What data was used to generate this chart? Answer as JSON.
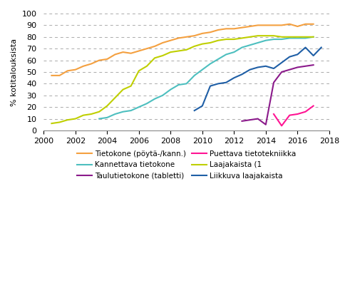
{
  "ylabel": "% kotitalouksista",
  "xlim": [
    2000,
    2018
  ],
  "ylim": [
    0,
    100
  ],
  "yticks": [
    0,
    10,
    20,
    30,
    40,
    50,
    60,
    70,
    80,
    90,
    100
  ],
  "xticks": [
    2000,
    2002,
    2004,
    2006,
    2008,
    2010,
    2012,
    2014,
    2016,
    2018
  ],
  "legend_order": [
    "Tietokone (pöytä-/kann.)",
    "Kannettava tietokone",
    "Taulutietokone (tabletti)",
    "Puettava tietotekniikka",
    "Laajakaista (1",
    "Liikkuva laajakaista"
  ],
  "series": {
    "Tietokone (pöytä-/kann.)": {
      "color": "#F4A040",
      "data": [
        [
          2000.5,
          47
        ],
        [
          2001.0,
          47
        ],
        [
          2001.5,
          51
        ],
        [
          2002.0,
          52
        ],
        [
          2002.5,
          55
        ],
        [
          2003.0,
          57
        ],
        [
          2003.5,
          60
        ],
        [
          2004.0,
          61
        ],
        [
          2004.5,
          65
        ],
        [
          2005.0,
          67
        ],
        [
          2005.5,
          66
        ],
        [
          2006.0,
          68
        ],
        [
          2006.5,
          70
        ],
        [
          2007.0,
          72
        ],
        [
          2007.5,
          75
        ],
        [
          2008.0,
          77
        ],
        [
          2008.5,
          79
        ],
        [
          2009.0,
          80
        ],
        [
          2009.5,
          81
        ],
        [
          2010.0,
          83
        ],
        [
          2010.5,
          84
        ],
        [
          2011.0,
          86
        ],
        [
          2011.5,
          87
        ],
        [
          2012.0,
          87
        ],
        [
          2012.5,
          88
        ],
        [
          2013.0,
          89
        ],
        [
          2013.5,
          90
        ],
        [
          2014.0,
          90
        ],
        [
          2014.5,
          90
        ],
        [
          2015.0,
          90
        ],
        [
          2015.5,
          91
        ],
        [
          2016.0,
          89
        ],
        [
          2016.5,
          91
        ],
        [
          2017.0,
          91
        ]
      ]
    },
    "Kannettava tietokone": {
      "color": "#4DBFBF",
      "data": [
        [
          2003.5,
          10
        ],
        [
          2004.0,
          11
        ],
        [
          2004.5,
          14
        ],
        [
          2005.0,
          16
        ],
        [
          2005.5,
          17
        ],
        [
          2006.0,
          20
        ],
        [
          2006.5,
          23
        ],
        [
          2007.0,
          27
        ],
        [
          2007.5,
          30
        ],
        [
          2008.0,
          35
        ],
        [
          2008.5,
          39
        ],
        [
          2009.0,
          40
        ],
        [
          2009.5,
          47
        ],
        [
          2010.0,
          52
        ],
        [
          2010.5,
          57
        ],
        [
          2011.0,
          61
        ],
        [
          2011.5,
          65
        ],
        [
          2012.0,
          67
        ],
        [
          2012.5,
          71
        ],
        [
          2013.0,
          73
        ],
        [
          2013.5,
          75
        ],
        [
          2014.0,
          77
        ],
        [
          2014.5,
          78
        ],
        [
          2015.0,
          78
        ],
        [
          2015.5,
          79
        ],
        [
          2016.0,
          79
        ],
        [
          2016.5,
          79
        ],
        [
          2017.0,
          80
        ]
      ]
    },
    "Taulutietokone (tabletti)": {
      "color": "#8B1A8B",
      "data": [
        [
          2012.5,
          8
        ],
        [
          2013.0,
          9
        ],
        [
          2013.5,
          10
        ],
        [
          2014.0,
          5
        ],
        [
          2014.5,
          41
        ],
        [
          2015.0,
          50
        ],
        [
          2015.5,
          52
        ],
        [
          2016.0,
          54
        ],
        [
          2016.5,
          55
        ],
        [
          2017.0,
          56
        ]
      ]
    },
    "Puettava tietotekniikka": {
      "color": "#FF1493",
      "data": [
        [
          2014.5,
          14
        ],
        [
          2015.0,
          4
        ],
        [
          2015.5,
          13
        ],
        [
          2016.0,
          14
        ],
        [
          2016.5,
          16
        ],
        [
          2017.0,
          21
        ]
      ]
    },
    "Laajakaista (1": {
      "color": "#BFCF00",
      "data": [
        [
          2000.5,
          6
        ],
        [
          2001.0,
          7
        ],
        [
          2001.5,
          9
        ],
        [
          2002.0,
          10
        ],
        [
          2002.5,
          13
        ],
        [
          2003.0,
          14
        ],
        [
          2003.5,
          16
        ],
        [
          2004.0,
          21
        ],
        [
          2004.5,
          28
        ],
        [
          2005.0,
          35
        ],
        [
          2005.5,
          38
        ],
        [
          2006.0,
          51
        ],
        [
          2006.5,
          55
        ],
        [
          2007.0,
          62
        ],
        [
          2007.5,
          64
        ],
        [
          2008.0,
          67
        ],
        [
          2008.5,
          68
        ],
        [
          2009.0,
          69
        ],
        [
          2009.5,
          72
        ],
        [
          2010.0,
          74
        ],
        [
          2010.5,
          75
        ],
        [
          2011.0,
          77
        ],
        [
          2011.5,
          78
        ],
        [
          2012.0,
          78
        ],
        [
          2012.5,
          79
        ],
        [
          2013.0,
          80
        ],
        [
          2013.5,
          81
        ],
        [
          2014.0,
          81
        ],
        [
          2014.5,
          81
        ],
        [
          2015.0,
          80
        ],
        [
          2015.5,
          80
        ],
        [
          2016.0,
          80
        ],
        [
          2016.5,
          80
        ],
        [
          2017.0,
          80
        ]
      ]
    },
    "Liikkuva laajakaista": {
      "color": "#1F5FA6",
      "data": [
        [
          2009.5,
          17
        ],
        [
          2010.0,
          21
        ],
        [
          2010.5,
          38
        ],
        [
          2011.0,
          40
        ],
        [
          2011.5,
          41
        ],
        [
          2012.0,
          45
        ],
        [
          2012.5,
          48
        ],
        [
          2013.0,
          52
        ],
        [
          2013.5,
          54
        ],
        [
          2014.0,
          55
        ],
        [
          2014.5,
          53
        ],
        [
          2015.0,
          58
        ],
        [
          2015.5,
          63
        ],
        [
          2016.0,
          65
        ],
        [
          2016.5,
          71
        ],
        [
          2017.0,
          64
        ],
        [
          2017.5,
          71
        ]
      ]
    }
  }
}
